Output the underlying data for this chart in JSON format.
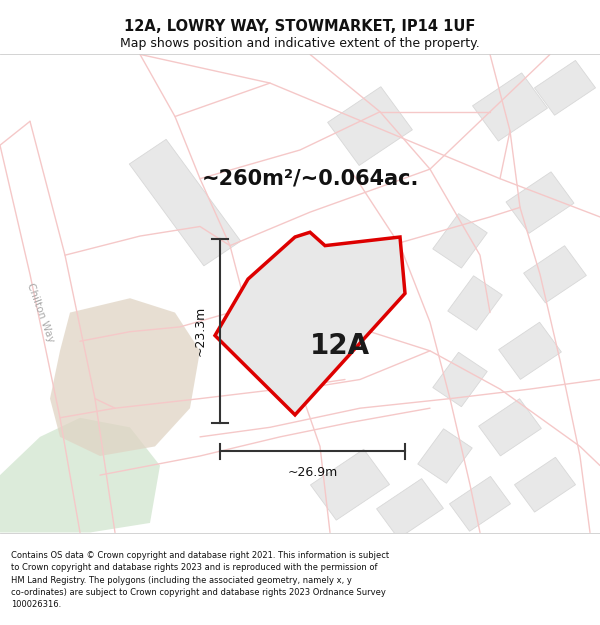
{
  "title": "12A, LOWRY WAY, STOWMARKET, IP14 1UF",
  "subtitle": "Map shows position and indicative extent of the property.",
  "area_label": "~260m²/~0.064ac.",
  "plot_label": "12A",
  "dim_h": "~23.3m",
  "dim_w": "~26.9m",
  "footer": "Contains OS data © Crown copyright and database right 2021. This information is subject to Crown copyright and database rights 2023 and is reproduced with the permission of HM Land Registry. The polygons (including the associated geometry, namely x, y co-ordinates) are subject to Crown copyright and database rights 2023 Ordnance Survey 100026316.",
  "title_fontsize": 10.5,
  "subtitle_fontsize": 9.0,
  "area_fontsize": 15,
  "label_fontsize": 20,
  "dim_fontsize": 9,
  "footer_fontsize": 6.0,
  "road_color": "#f5c8c8",
  "road_outline": "#f0b0b0",
  "building_fill": "#e8e8e8",
  "building_edge": "#d8d8d8",
  "prop_fill": "#e8e8e8",
  "prop_outline": "#dd0000",
  "dim_color": "#333333",
  "street_color": "#aaaaaa",
  "green_color": "#d6e8d4",
  "tan_color": "#e0d4c4"
}
